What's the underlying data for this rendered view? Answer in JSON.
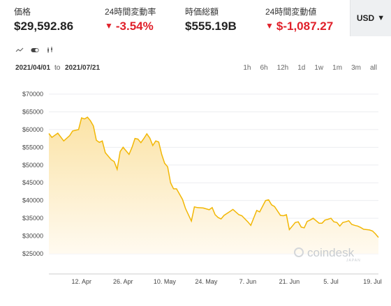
{
  "stats": [
    {
      "label": "価格",
      "value": "$29,592.86",
      "negative": false
    },
    {
      "label": "24時間変動率",
      "value": "-3.54%",
      "negative": true
    },
    {
      "label": "時価総額",
      "value": "$555.19B",
      "negative": false
    },
    {
      "label": "24時間変動値",
      "value": "$-1,087.27",
      "negative": true
    }
  ],
  "currency": {
    "label": "USD"
  },
  "tools": [
    {
      "icon": "line-chart-icon"
    },
    {
      "icon": "toggle-icon"
    },
    {
      "icon": "candlestick-icon"
    }
  ],
  "range": {
    "from": "2021/04/01",
    "sep": "to",
    "to": "2021/07/21"
  },
  "periods": [
    "1h",
    "6h",
    "12h",
    "1d",
    "1w",
    "1m",
    "3m",
    "all"
  ],
  "watermark": {
    "text": "coindesk",
    "sub": "JAPAN"
  },
  "colors": {
    "line": "#f2b705",
    "fill_top": "#fbe3a6",
    "fill_bottom": "#fffaf0",
    "negative": "#e0202a"
  },
  "chart_data": {
    "type": "area",
    "y_tick_labels": [
      "$25000",
      "$30000",
      "$35000",
      "$40000",
      "$45000",
      "$50000",
      "$55000",
      "$60000",
      "$65000",
      "$70000"
    ],
    "ylim": [
      25000,
      70000
    ],
    "x_tick_labels": [
      "12. Apr",
      "26. Apr",
      "10. May",
      "24. May",
      "7. Jun",
      "21. Jun",
      "5. Jul",
      "19. Jul"
    ],
    "x_tick_dates": [
      "2021-04-12",
      "2021-04-26",
      "2021-05-10",
      "2021-05-24",
      "2021-06-07",
      "2021-06-21",
      "2021-07-05",
      "2021-07-19"
    ],
    "xlim": [
      "2021-04-01",
      "2021-07-21"
    ],
    "grid": "horizontal",
    "series": [
      {
        "x": [
          "2021-04-01",
          "2021-04-02",
          "2021-04-04",
          "2021-04-06",
          "2021-04-08",
          "2021-04-09",
          "2021-04-11",
          "2021-04-12",
          "2021-04-13",
          "2021-04-14",
          "2021-04-15",
          "2021-04-16",
          "2021-04-17",
          "2021-04-18",
          "2021-04-19",
          "2021-04-20",
          "2021-04-22",
          "2021-04-23",
          "2021-04-24",
          "2021-04-25",
          "2021-04-26",
          "2021-04-28",
          "2021-04-29",
          "2021-04-30",
          "2021-05-01",
          "2021-05-02",
          "2021-05-03",
          "2021-05-04",
          "2021-05-05",
          "2021-05-06",
          "2021-05-07",
          "2021-05-08",
          "2021-05-09",
          "2021-05-10",
          "2021-05-11",
          "2021-05-12",
          "2021-05-13",
          "2021-05-14",
          "2021-05-16",
          "2021-05-17",
          "2021-05-19",
          "2021-05-20",
          "2021-05-21",
          "2021-05-23",
          "2021-05-25",
          "2021-05-26",
          "2021-05-27",
          "2021-05-28",
          "2021-05-29",
          "2021-05-30",
          "2021-06-01",
          "2021-06-02",
          "2021-06-04",
          "2021-06-05",
          "2021-06-07",
          "2021-06-08",
          "2021-06-10",
          "2021-06-11",
          "2021-06-13",
          "2021-06-14",
          "2021-06-15",
          "2021-06-16",
          "2021-06-18",
          "2021-06-19",
          "2021-06-20",
          "2021-06-21",
          "2021-06-22",
          "2021-06-23",
          "2021-06-24",
          "2021-06-25",
          "2021-06-26",
          "2021-06-27",
          "2021-06-28",
          "2021-06-29",
          "2021-07-01",
          "2021-07-02",
          "2021-07-03",
          "2021-07-04",
          "2021-07-05",
          "2021-07-06",
          "2021-07-07",
          "2021-07-08",
          "2021-07-09",
          "2021-07-10",
          "2021-07-11",
          "2021-07-12",
          "2021-07-13",
          "2021-07-14",
          "2021-07-15",
          "2021-07-16",
          "2021-07-17",
          "2021-07-18",
          "2021-07-19",
          "2021-07-20",
          "2021-07-21"
        ],
        "y": [
          58900,
          57800,
          59000,
          56800,
          58300,
          59600,
          60000,
          63300,
          63000,
          63500,
          62500,
          61000,
          57000,
          56400,
          56800,
          53500,
          51500,
          51000,
          48800,
          53800,
          55000,
          53000,
          55000,
          57500,
          57300,
          56300,
          57500,
          58800,
          57600,
          55500,
          56800,
          56500,
          53000,
          50500,
          49500,
          45000,
          43300,
          43300,
          40300,
          37800,
          34200,
          38200,
          38000,
          37900,
          37400,
          38000,
          36000,
          35200,
          34800,
          35800,
          36900,
          37500,
          36000,
          35700,
          34000,
          33000,
          37200,
          36800,
          40000,
          40200,
          38800,
          38300,
          35800,
          35700,
          36000,
          31800,
          32800,
          33800,
          34000,
          32500,
          32300,
          34100,
          34500,
          35000,
          33600,
          33600,
          34500,
          34700,
          35000,
          34000,
          33800,
          32800,
          33800,
          34000,
          34300,
          33300,
          33000,
          32800,
          32400,
          31900,
          31800,
          31700,
          31400,
          30600,
          29600
        ]
      }
    ]
  }
}
